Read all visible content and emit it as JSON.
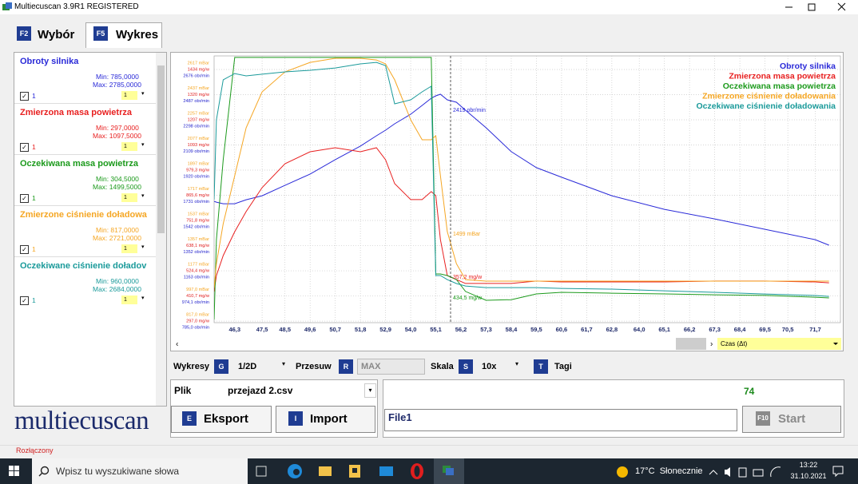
{
  "window": {
    "title": "Multiecuscan 3.9R1 REGISTERED"
  },
  "tabs": [
    {
      "key": "F2",
      "label": "Wybór"
    },
    {
      "key": "F5",
      "label": "Wykres"
    }
  ],
  "panel": {
    "items": [
      {
        "name": "Obroty silnika",
        "min": "Min: 785,0000",
        "max": "Max: 2785,0000",
        "check": "1",
        "select": "1"
      },
      {
        "name": "Zmierzona masa powietrza",
        "min": "Min: 297,0000",
        "max": "Max: 1097,5000",
        "check": "1",
        "select": "1"
      },
      {
        "name": "Oczekiwana masa powietrza",
        "min": "Min: 304,5000",
        "max": "Max: 1499,5000",
        "check": "1",
        "select": "1"
      },
      {
        "name": "Zmierzone ciśnienie doładowa",
        "min": "Min: 817,0000",
        "max": "Max: 2721,0000",
        "check": "1",
        "select": "1"
      },
      {
        "name": "Oczekiwane ciśnienie doładov",
        "min": "Min: 960,0000",
        "max": "Max: 2684,0000",
        "check": "1",
        "select": "1"
      }
    ]
  },
  "logo": "multiecuscan",
  "chart_data": {
    "type": "line",
    "x": [
      45.4,
      45.5,
      45.8,
      46.3,
      46.8,
      47.5,
      48.5,
      49.6,
      50.7,
      51.8,
      52.5,
      52.9,
      53.3,
      54.0,
      54.5,
      54.9,
      55.1,
      55.3,
      55.6,
      56.0,
      56.4,
      57.3,
      58.4,
      59.5,
      60.6,
      62.8,
      65.1,
      67.3,
      69.5,
      71.7,
      72.3
    ],
    "xlim": [
      45.4,
      72.8
    ],
    "xticks": [
      {
        "value": 46.3,
        "label": "46,3"
      },
      {
        "value": 47.5,
        "label": "47,5"
      },
      {
        "value": 48.5,
        "label": "48,5"
      },
      {
        "value": 49.6,
        "label": "49,6"
      },
      {
        "value": 50.7,
        "label": "50,7"
      },
      {
        "value": 51.8,
        "label": "51,8"
      },
      {
        "value": 52.9,
        "label": "52,9"
      },
      {
        "value": 54.0,
        "label": "54,0"
      },
      {
        "value": 55.1,
        "label": "55,1"
      },
      {
        "value": 56.2,
        "label": "56,2"
      },
      {
        "value": 57.3,
        "label": "57,3"
      },
      {
        "value": 58.4,
        "label": "58,4"
      },
      {
        "value": 59.5,
        "label": "59,5"
      },
      {
        "value": 60.6,
        "label": "60,6"
      },
      {
        "value": 61.7,
        "label": "61,7"
      },
      {
        "value": 62.8,
        "label": "62,8"
      },
      {
        "value": 64.0,
        "label": "64,0"
      },
      {
        "value": 65.1,
        "label": "65,1"
      },
      {
        "value": 66.2,
        "label": "66,2"
      },
      {
        "value": 67.3,
        "label": "67,3"
      },
      {
        "value": 68.4,
        "label": "68,4"
      },
      {
        "value": 69.5,
        "label": "69,5"
      },
      {
        "value": 70.5,
        "label": "70,5"
      },
      {
        "value": 71.7,
        "label": "71,7"
      }
    ],
    "grid": true,
    "yaxes": [
      {
        "color": "#f5a623",
        "ylim": [
          806,
          2714
        ],
        "yticks": [
          {
            "value": 2617,
            "label": "2617 mBar"
          },
          {
            "value": 2437,
            "label": "2437 mBar"
          },
          {
            "value": 2257,
            "label": "2257 mBar"
          },
          {
            "value": 2077,
            "label": "2077 mBar"
          },
          {
            "value": 1897,
            "label": "1897 mBar"
          },
          {
            "value": 1717,
            "label": "1717 mBar"
          },
          {
            "value": 1537,
            "label": "1537 mBar"
          },
          {
            "value": 1357,
            "label": "1357 mBar"
          },
          {
            "value": 1177,
            "label": "1177 mBar"
          },
          {
            "value": 997.0,
            "label": "997,0 mBar"
          },
          {
            "value": 817.0,
            "label": "817,0 mBar"
          }
        ]
      },
      {
        "color": "#e02020",
        "ylim": [
          290,
          1495
        ],
        "yticks": [
          {
            "value": 1434,
            "label": "1434 mg/w"
          },
          {
            "value": 1320,
            "label": "1320 mg/w"
          },
          {
            "value": 1207,
            "label": "1207 mg/w"
          },
          {
            "value": 1093,
            "label": "1093 mg/w"
          },
          {
            "value": 979.3,
            "label": "979,3 mg/w"
          },
          {
            "value": 865.6,
            "label": "865,6 mg/w"
          },
          {
            "value": 751.8,
            "label": "751,8 mg/w"
          },
          {
            "value": 638.1,
            "label": "638,1 mg/w"
          },
          {
            "value": 524.4,
            "label": "524,4 mg/w"
          },
          {
            "value": 410.7,
            "label": "410,7 mg/w"
          },
          {
            "value": 297.0,
            "label": "297,0 mg/w"
          }
        ]
      },
      {
        "color": "#2222cc",
        "ylim": [
          773,
          2778
        ],
        "yticks": [
          {
            "value": 2676,
            "label": "2676 obr/min"
          },
          {
            "value": 2487,
            "label": "2487 obr/min"
          },
          {
            "value": 2298,
            "label": "2298 obr/min"
          },
          {
            "value": 2109,
            "label": "2109 obr/min"
          },
          {
            "value": 1920,
            "label": "1920 obr/min"
          },
          {
            "value": 1731,
            "label": "1731 obr/min"
          },
          {
            "value": 1542,
            "label": "1542 obr/min"
          },
          {
            "value": 1352,
            "label": "1352 obr/min"
          },
          {
            "value": 1163,
            "label": "1163 obr/min"
          },
          {
            "value": 974.1,
            "label": "974,1 obr/min"
          },
          {
            "value": 785.0,
            "label": "785,0 obr/min"
          }
        ]
      }
    ],
    "series": [
      {
        "name": "Obroty silnika",
        "color": "#2a2ad8",
        "axis": 2,
        "values": [
          1685,
          1679,
          1667,
          1667,
          1697,
          1727,
          1805,
          1890,
          1998,
          2100,
          2178,
          2220,
          2268,
          2340,
          2406,
          2460,
          2478,
          2490,
          2448,
          2430,
          2370,
          2238,
          2058,
          1938,
          1866,
          1727,
          1625,
          1553,
          1475,
          1397,
          1355
        ]
      },
      {
        "name": "Zmierzona masa powietrza",
        "color": "#e82020",
        "axis": 1,
        "values": [
          431,
          503,
          593,
          701,
          792,
          900,
          1008,
          1062,
          1080,
          1062,
          1080,
          1026,
          918,
          846,
          846,
          882,
          864,
          665,
          503,
          485,
          467,
          467,
          467,
          478,
          474,
          474,
          474,
          478,
          478,
          474,
          470
        ]
      },
      {
        "name": "Oczekiwana masa powietrza",
        "color": "#1c9a1c",
        "axis": 1,
        "values": [
          304,
          665,
          1026,
          1488,
          1488,
          1488,
          1488,
          1488,
          1488,
          1488,
          1488,
          1488,
          1488,
          1488,
          1488,
          1488,
          510,
          510,
          503,
          485,
          431,
          391,
          394,
          420,
          427,
          423,
          420,
          416,
          413,
          405,
          402
        ]
      },
      {
        "name": "Zmierzone ciśnienie doładowania",
        "color": "#f5a623",
        "axis": 0,
        "values": [
          1057,
          1228,
          1514,
          1857,
          2200,
          2457,
          2600,
          2668,
          2697,
          2697,
          2685,
          2657,
          2543,
          2257,
          2114,
          2114,
          2143,
          1857,
          1457,
          1228,
          1114,
          1103,
          1103,
          1103,
          1103,
          1103,
          1103,
          1103,
          1103,
          1103,
          1103
        ]
      },
      {
        "name": "Oczekiwane ciśnienie doładowania",
        "color": "#1a9a9a",
        "axis": 0,
        "values": [
          1686,
          2257,
          2543,
          2588,
          2571,
          2583,
          2600,
          2611,
          2628,
          2657,
          2668,
          2645,
          2371,
          2400,
          2457,
          2497,
          1143,
          1143,
          1114,
          1086,
          1068,
          1057,
          1057,
          1057,
          1051,
          1046,
          1034,
          1023,
          1011,
          1000,
          994
        ]
      }
    ],
    "annotations": [
      "2419 obr/min",
      "1499 mBar",
      "357,2 mg/w",
      "434,5 mg/w"
    ],
    "scroll_field": "Czas (Δt)"
  },
  "controls": {
    "wykresy": "Wykresy",
    "wykresy_key": "G",
    "wykresy_value": "1/2D",
    "przesuw": "Przesuw",
    "przesuw_key": "R",
    "przesuw_value": "MAX",
    "skala": "Skala",
    "skala_key": "S",
    "skala_value": "10x",
    "tagi_key": "T",
    "tagi": "Tagi"
  },
  "file": {
    "label": "Plik",
    "value": "przejazd 2.csv",
    "export_key": "E",
    "export": "Eksport",
    "import_key": "I",
    "import": "Import"
  },
  "run": {
    "counter": "74",
    "name": "File1",
    "start_key": "F10",
    "start": "Start"
  },
  "status": "Rozłączony",
  "taskbar": {
    "search": "Wpisz tu wyszukiwane słowa",
    "weather": "17°C  Słonecznie",
    "time": "13:22",
    "date": "31.10.2021"
  }
}
